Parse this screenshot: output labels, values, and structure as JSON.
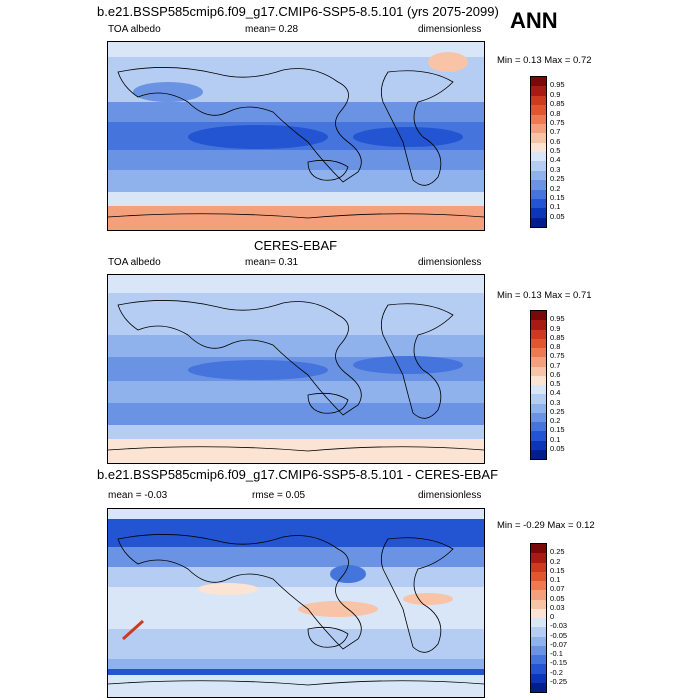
{
  "season": "ANN",
  "panels": [
    {
      "id": "model",
      "title": "b.e21.BSSP585cmip6.f09_g17.CMIP6-SSP5-8.5.101 (yrs 2075-2099)",
      "left_label": "TOA albedo",
      "center_label": "mean=  0.28",
      "right_label": "dimensionless",
      "minmax": "Min =  0.13 Max =  0.72",
      "colorbar": {
        "levels": [
          "0.95",
          "0.9",
          "0.85",
          "0.8",
          "0.75",
          "0.7",
          "0.6",
          "0.5",
          "0.4",
          "0.3",
          "0.25",
          "0.2",
          "0.15",
          "0.1",
          "0.05"
        ],
        "colors": [
          "#7a0a0a",
          "#a81b12",
          "#cc3a1f",
          "#e0572f",
          "#ee7a52",
          "#f5a07c",
          "#f8c3a6",
          "#fbe4d3",
          "#d9e6f8",
          "#b5cdf2",
          "#8fb1ec",
          "#6b93e4",
          "#4474dc",
          "#2354d2",
          "#0b36b8",
          "#001e8c"
        ]
      }
    },
    {
      "id": "obs",
      "title": "CERES-EBAF",
      "left_label": "TOA albedo",
      "center_label": "mean=  0.31",
      "right_label": "dimensionless",
      "minmax": "Min =  0.13 Max =  0.71",
      "colorbar": {
        "levels": [
          "0.95",
          "0.9",
          "0.85",
          "0.8",
          "0.75",
          "0.7",
          "0.6",
          "0.5",
          "0.4",
          "0.3",
          "0.25",
          "0.2",
          "0.15",
          "0.1",
          "0.05"
        ],
        "colors": [
          "#7a0a0a",
          "#a81b12",
          "#cc3a1f",
          "#e0572f",
          "#ee7a52",
          "#f5a07c",
          "#f8c3a6",
          "#fbe4d3",
          "#d9e6f8",
          "#b5cdf2",
          "#8fb1ec",
          "#6b93e4",
          "#4474dc",
          "#2354d2",
          "#0b36b8",
          "#001e8c"
        ]
      }
    },
    {
      "id": "diff",
      "title": "b.e21.BSSP585cmip6.f09_g17.CMIP6-SSP5-8.5.101 - CERES-EBAF",
      "left_label": "mean = -0.03",
      "center_label": "rmse =  0.05",
      "right_label": "dimensionless",
      "minmax": "Min = -0.29 Max =  0.12",
      "colorbar": {
        "levels": [
          "0.25",
          "0.2",
          "0.15",
          "0.1",
          "0.07",
          "0.05",
          "0.03",
          "0",
          "-0.03",
          "-0.05",
          "-0.07",
          "-0.1",
          "-0.15",
          "-0.2",
          "-0.25"
        ],
        "colors": [
          "#7a0a0a",
          "#a81b12",
          "#cc3a1f",
          "#e0572f",
          "#ee7a52",
          "#f5a07c",
          "#f8c3a6",
          "#fbe4d3",
          "#d9e6f8",
          "#b5cdf2",
          "#8fb1ec",
          "#6b93e4",
          "#4474dc",
          "#2354d2",
          "#0b36b8",
          "#001e8c"
        ]
      }
    }
  ]
}
